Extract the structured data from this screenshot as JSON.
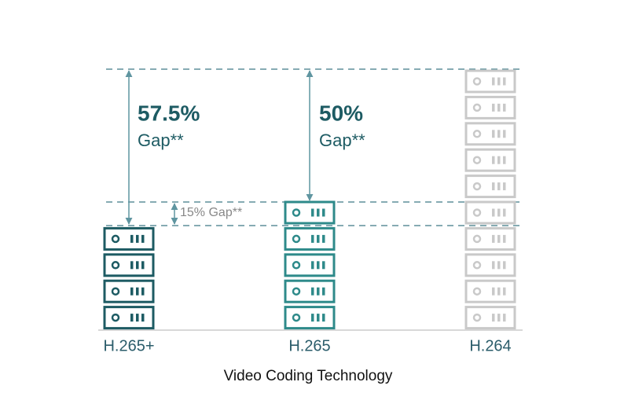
{
  "chart_data": {
    "type": "pictograph",
    "categories": [
      "H.265+",
      "H.265",
      "H.264"
    ],
    "values": [
      4,
      5,
      10
    ],
    "colors": [
      "#1d5b63",
      "#2e8a8a",
      "#c9c9c9"
    ],
    "x_label": "Video Coding Technology",
    "annotations": [
      {
        "label": "57.5%",
        "text": "Gap**"
      },
      {
        "label": "50%",
        "text": "Gap**"
      },
      {
        "label": "15% Gap**"
      }
    ]
  }
}
